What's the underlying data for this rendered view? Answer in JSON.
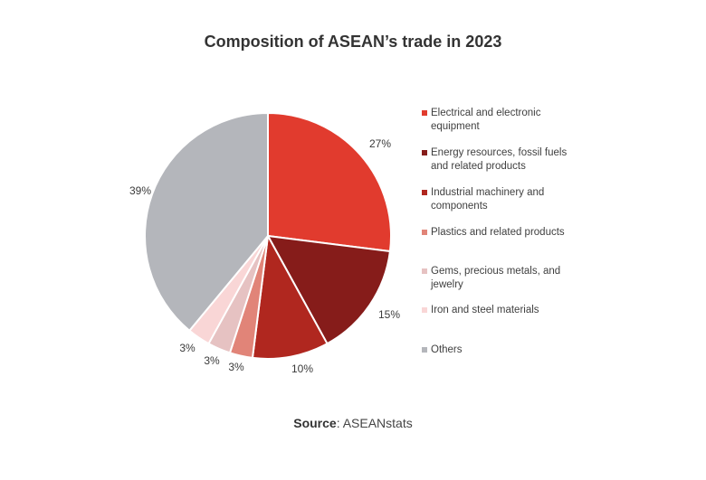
{
  "chart_data": {
    "type": "pie",
    "title": "Composition of ASEAN’s trade in 2023",
    "slices": [
      {
        "label": "Electrical and electronic equipment",
        "value": 27,
        "value_label": "27%",
        "color": "#e13b2e"
      },
      {
        "label": "Energy resources, fossil fuels and related products",
        "value": 15,
        "value_label": "15%",
        "color": "#861c1a"
      },
      {
        "label": "Industrial machinery and components",
        "value": 10,
        "value_label": "10%",
        "color": "#b0271f"
      },
      {
        "label": "Plastics and related products",
        "value": 3,
        "value_label": "3%",
        "color": "#e18478"
      },
      {
        "label": "Gems, precious metals, and jewelry",
        "value": 3,
        "value_label": "3%",
        "color": "#e6c2c2"
      },
      {
        "label": "Iron and steel materials",
        "value": 3,
        "value_label": "3%",
        "color": "#f9d6d6"
      },
      {
        "label": "Others",
        "value": 39,
        "value_label": "39%",
        "color": "#b4b6bb"
      }
    ],
    "legend_position": "right"
  },
  "source": {
    "label": "Source",
    "text": ": ASEANstats"
  }
}
